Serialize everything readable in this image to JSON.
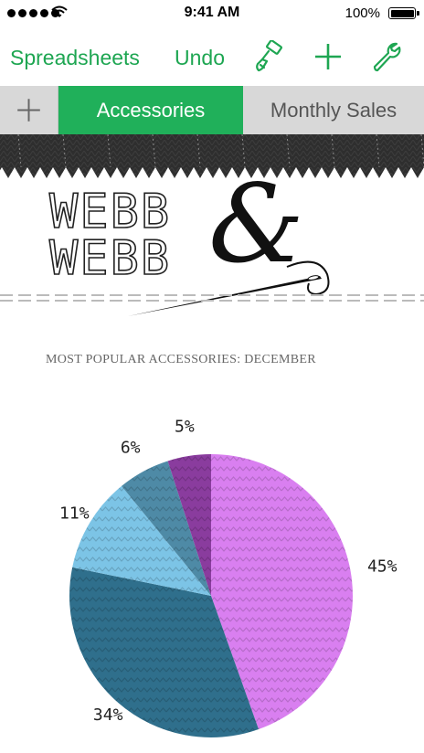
{
  "status_bar": {
    "time": "9:41 AM",
    "battery": "100%"
  },
  "toolbar": {
    "spreadsheets_label": "Spreadsheets",
    "undo_label": "Undo",
    "format_icon": "paintbrush-icon",
    "add_icon": "plus-icon",
    "tools_icon": "wrench-icon",
    "accent_color": "#1ea652"
  },
  "tabs": {
    "add_icon": "plus-icon",
    "items": [
      {
        "label": "Accessories",
        "active": true
      },
      {
        "label": "Monthly Sales",
        "active": false
      }
    ],
    "active_color": "#20b05a"
  },
  "logo": {
    "line1": "WEBB",
    "line2": "WEBB",
    "ampersand": "&"
  },
  "chart_data": {
    "type": "pie",
    "title": "MOST POPULAR ACCESSORIES: DECEMBER",
    "slices": [
      {
        "value": 45,
        "label": "45%",
        "color": "#d97ff0"
      },
      {
        "value": 34,
        "label": "34%",
        "color": "#2f6f8c"
      },
      {
        "value": 11,
        "label": "11%",
        "color": "#7cc4e6"
      },
      {
        "value": 6,
        "label": "6%",
        "color": "#4e8aa6"
      },
      {
        "value": 5,
        "label": "5%",
        "color": "#8a3c9e"
      }
    ]
  }
}
